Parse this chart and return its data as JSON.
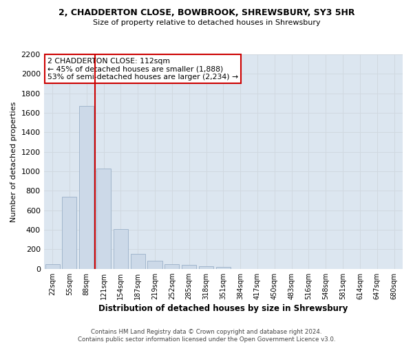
{
  "title_line1": "2, CHADDERTON CLOSE, BOWBROOK, SHREWSBURY, SY3 5HR",
  "title_line2": "Size of property relative to detached houses in Shrewsbury",
  "xlabel": "Distribution of detached houses by size in Shrewsbury",
  "ylabel": "Number of detached properties",
  "footer_line1": "Contains HM Land Registry data © Crown copyright and database right 2024.",
  "footer_line2": "Contains public sector information licensed under the Open Government Licence v3.0.",
  "bin_labels": [
    "22sqm",
    "55sqm",
    "88sqm",
    "121sqm",
    "154sqm",
    "187sqm",
    "219sqm",
    "252sqm",
    "285sqm",
    "318sqm",
    "351sqm",
    "384sqm",
    "417sqm",
    "450sqm",
    "483sqm",
    "516sqm",
    "548sqm",
    "581sqm",
    "614sqm",
    "647sqm",
    "680sqm"
  ],
  "bar_values": [
    50,
    740,
    1670,
    1030,
    405,
    150,
    80,
    48,
    40,
    28,
    20,
    0,
    0,
    0,
    0,
    0,
    0,
    0,
    0,
    0,
    0
  ],
  "bar_color": "#ccd9e8",
  "bar_edgecolor": "#9ab0c8",
  "grid_color": "#d0d8e0",
  "bg_color": "#dce6f0",
  "vline_color": "#cc0000",
  "vline_x": 2.5,
  "annotation_text": "2 CHADDERTON CLOSE: 112sqm\n← 45% of detached houses are smaller (1,888)\n53% of semi-detached houses are larger (2,234) →",
  "annotation_box_color": "#ffffff",
  "annotation_box_edgecolor": "#cc0000",
  "ylim": [
    0,
    2200
  ],
  "yticks": [
    0,
    200,
    400,
    600,
    800,
    1000,
    1200,
    1400,
    1600,
    1800,
    2000,
    2200
  ],
  "fig_facecolor": "#ffffff"
}
